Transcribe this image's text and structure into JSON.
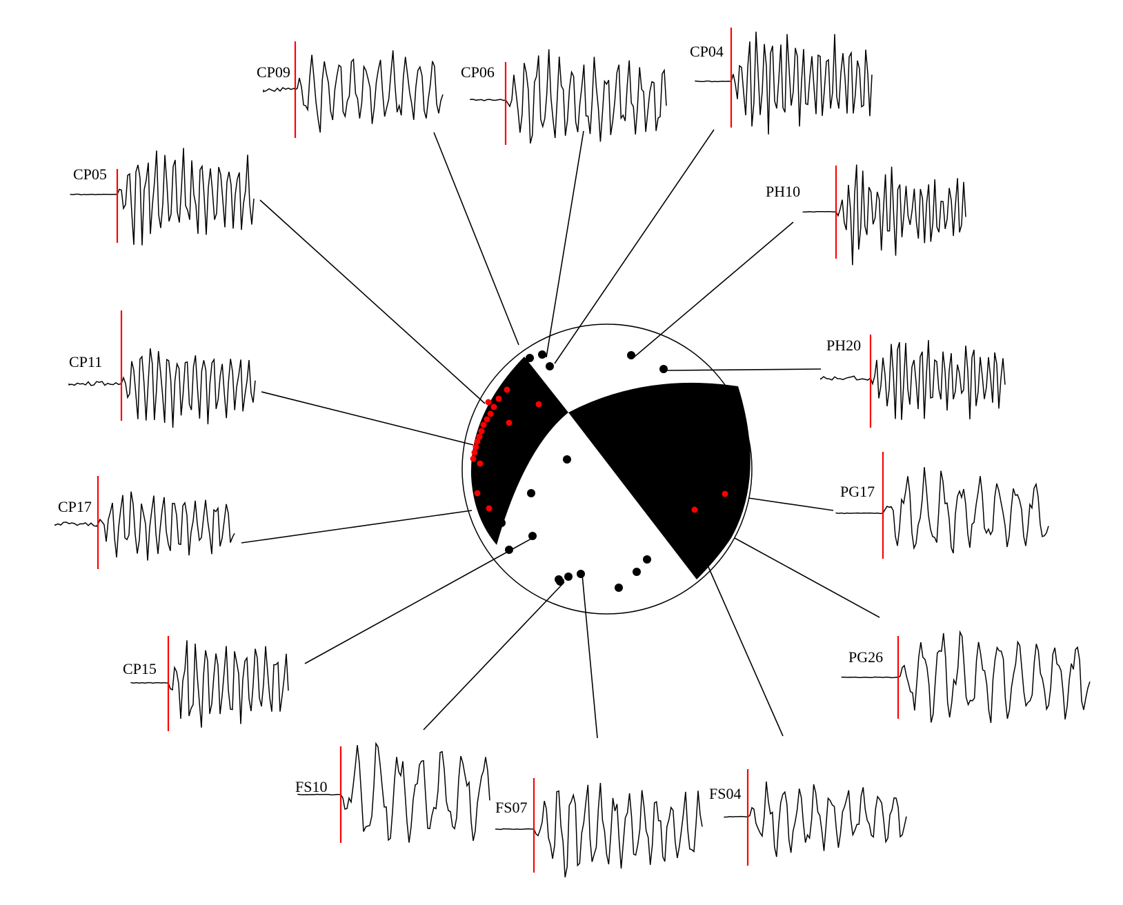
{
  "colors": {
    "compression_quadrant": "#000000",
    "dilatation_quadrant": "#ffffff",
    "upward_first_motion_dot": "#000000",
    "downward_first_motion_dot": "#ff0000",
    "p_arrival_marker": "#ff0000",
    "waveform": "#000000",
    "leader_line": "#000000"
  },
  "stations": [
    {
      "id": "CP09",
      "label": "CP09",
      "first_motion": "up"
    },
    {
      "id": "CP06",
      "label": "CP06",
      "first_motion": "down"
    },
    {
      "id": "CP04",
      "label": "CP04",
      "first_motion": "up"
    },
    {
      "id": "PH10",
      "label": "PH10",
      "first_motion": "down"
    },
    {
      "id": "PH20",
      "label": "PH20",
      "first_motion": "down"
    },
    {
      "id": "PG17",
      "label": "PG17",
      "first_motion": "up"
    },
    {
      "id": "PG26",
      "label": "PG26",
      "first_motion": "up"
    },
    {
      "id": "FS04",
      "label": "FS04",
      "first_motion": "up"
    },
    {
      "id": "FS07",
      "label": "FS07",
      "first_motion": "down"
    },
    {
      "id": "FS10",
      "label": "FS10",
      "first_motion": "down"
    },
    {
      "id": "CP15",
      "label": "CP15",
      "first_motion": "down"
    },
    {
      "id": "CP17",
      "label": "CP17",
      "first_motion": "up"
    },
    {
      "id": "CP11",
      "label": "CP11",
      "first_motion": "up"
    },
    {
      "id": "CP05",
      "label": "CP05",
      "first_motion": "up"
    }
  ],
  "polarity_counts": {
    "red_dots": 20,
    "black_dots": 20
  }
}
